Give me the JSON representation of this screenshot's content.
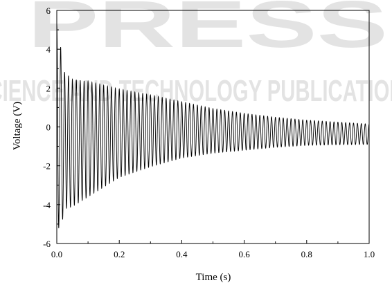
{
  "watermark": {
    "top_text": "PRESS",
    "bottom_text": "SCIENCE AND TECHNOLOGY PUBLICATIONS"
  },
  "chart_data": {
    "type": "line",
    "title": "",
    "xlabel": "Time (s)",
    "ylabel": "Voltage (V)",
    "xlim": [
      0.0,
      1.0
    ],
    "ylim": [
      -6,
      6
    ],
    "x_ticks": [
      "0.0",
      "0.2",
      "0.4",
      "0.6",
      "0.8",
      "1.0"
    ],
    "y_ticks": [
      "-6",
      "-4",
      "-2",
      "0",
      "2",
      "4",
      "6"
    ],
    "grid": false,
    "line_color": "#000000",
    "series": [
      {
        "signal": "damped oscillation",
        "frequency_hz": 80,
        "peak_envelope": [
          {
            "t": 0.005,
            "v": 5.3
          },
          {
            "t": 0.02,
            "v": 2.9
          },
          {
            "t": 0.05,
            "v": 2.45
          },
          {
            "t": 0.1,
            "v": 2.35
          },
          {
            "t": 0.2,
            "v": 1.95
          },
          {
            "t": 0.3,
            "v": 1.65
          },
          {
            "t": 0.4,
            "v": 1.3
          },
          {
            "t": 0.5,
            "v": 0.95
          },
          {
            "t": 0.6,
            "v": 0.7
          },
          {
            "t": 0.7,
            "v": 0.5
          },
          {
            "t": 0.8,
            "v": 0.35
          },
          {
            "t": 0.9,
            "v": 0.25
          },
          {
            "t": 1.0,
            "v": 0.15
          }
        ],
        "trough_envelope": [
          {
            "t": 0.01,
            "v": -5.2
          },
          {
            "t": 0.03,
            "v": -4.2
          },
          {
            "t": 0.05,
            "v": -4.1
          },
          {
            "t": 0.1,
            "v": -3.6
          },
          {
            "t": 0.2,
            "v": -2.6
          },
          {
            "t": 0.3,
            "v": -2.05
          },
          {
            "t": 0.4,
            "v": -1.6
          },
          {
            "t": 0.5,
            "v": -1.35
          },
          {
            "t": 0.6,
            "v": -1.2
          },
          {
            "t": 0.7,
            "v": -1.05
          },
          {
            "t": 0.8,
            "v": -0.95
          },
          {
            "t": 0.9,
            "v": -0.92
          },
          {
            "t": 1.0,
            "v": -0.9
          }
        ]
      }
    ]
  }
}
